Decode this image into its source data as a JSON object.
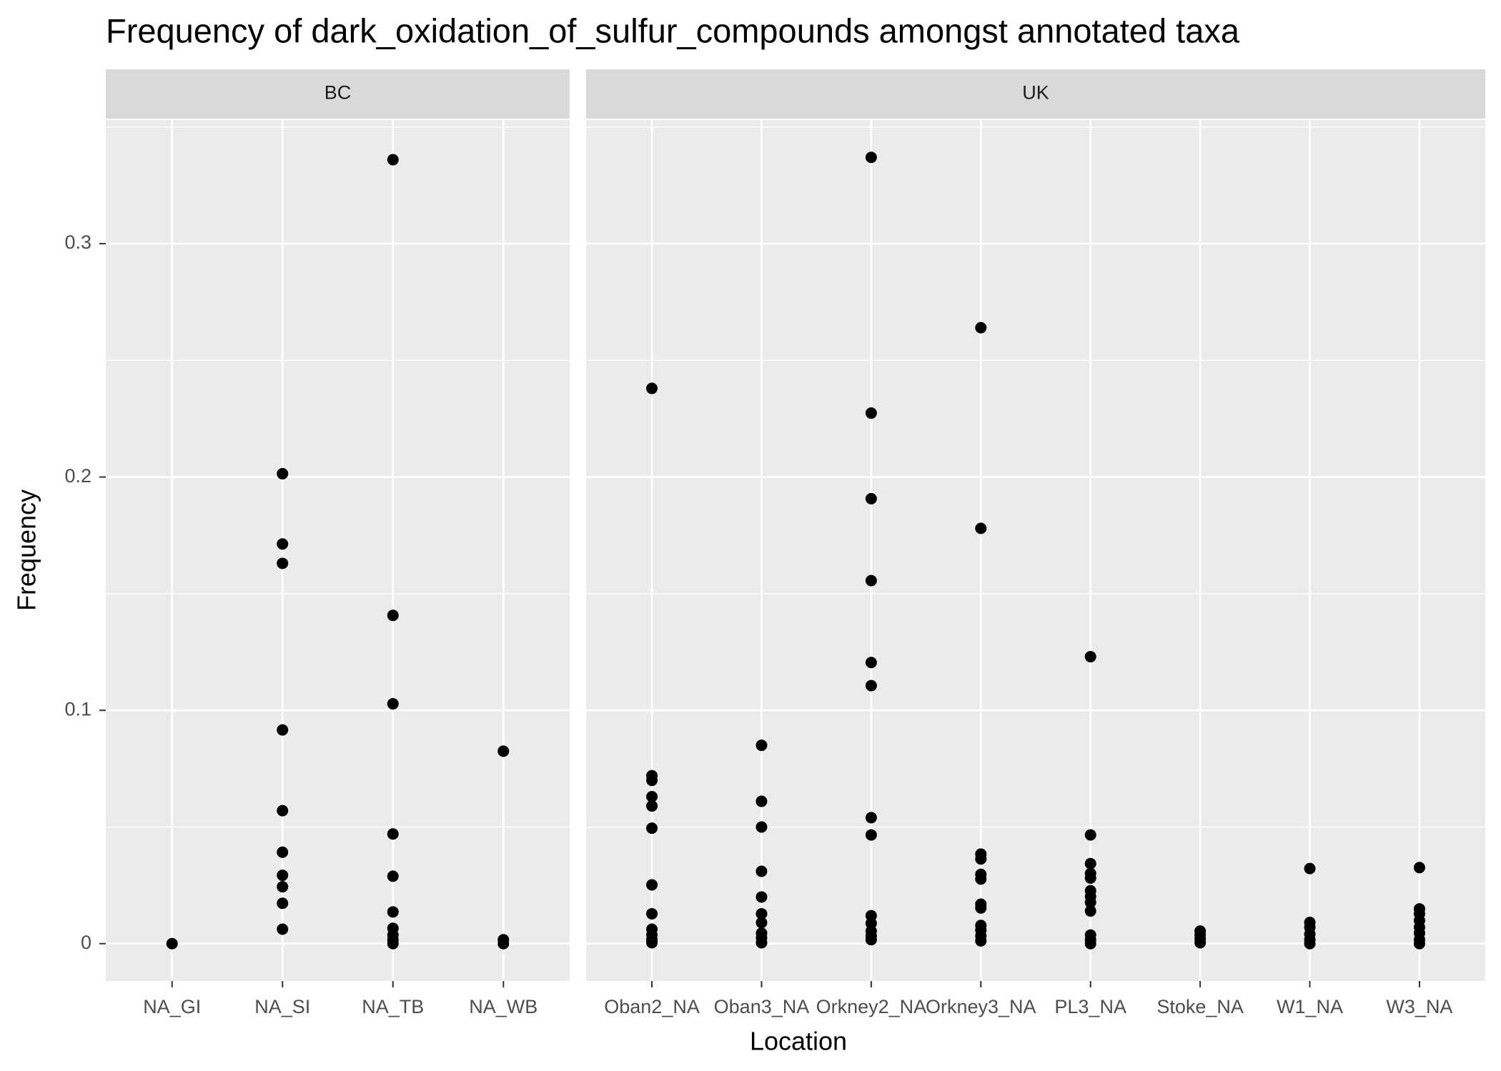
{
  "chart_data": {
    "type": "strip",
    "title": "Frequency of dark_oxidation_of_sulfur_compounds amongst annotated taxa",
    "x_label": "Location",
    "y_label": "Frequency",
    "ylim": [
      -0.016,
      0.353
    ],
    "yticks": [
      0.0,
      0.1,
      0.2,
      0.3
    ],
    "y_minor_grid": [
      0.05,
      0.15,
      0.25,
      0.35
    ],
    "grid": true,
    "color": "#000000",
    "panels": [
      {
        "name": "BC",
        "categories": [
          "NA_GI",
          "NA_SI",
          "NA_TB",
          "NA_WB"
        ],
        "values": [
          [
            0
          ],
          [
            0.2014,
            0.1713,
            0.163,
            0.0916,
            0.057,
            0.0392,
            0.0293,
            0.0244,
            0.0173,
            0.0062
          ],
          [
            0.336,
            0.1407,
            0.1028,
            0.047,
            0.0289,
            0.0136,
            0.0066,
            0.0037,
            0.0017,
            0
          ],
          [
            0.0825,
            0.0017,
            0
          ]
        ]
      },
      {
        "name": "UK",
        "categories": [
          "Oban2_NA",
          "Oban3_NA",
          "Orkney2_NA",
          "Orkney3_NA",
          "PL3_NA",
          "Stoke_NA",
          "W1_NA",
          "W3_NA"
        ],
        "values": [
          [
            0.238,
            0.072,
            0.07,
            0.063,
            0.059,
            0.0495,
            0.0252,
            0.0128,
            0.0062,
            0.0037,
            0.0017,
            0.0004
          ],
          [
            0.085,
            0.061,
            0.05,
            0.031,
            0.02,
            0.0128,
            0.009,
            0.0045,
            0.0025,
            0.0004
          ],
          [
            0.337,
            0.2274,
            0.1907,
            0.1556,
            0.1205,
            0.1106,
            0.054,
            0.0466,
            0.012,
            0.0087,
            0.0054,
            0.0033,
            0.0017
          ],
          [
            0.264,
            0.178,
            0.0384,
            0.0363,
            0.0297,
            0.0277,
            0.0169,
            0.0153,
            0.0078,
            0.0058,
            0.0033,
            0.0012
          ],
          [
            0.123,
            0.0466,
            0.0343,
            0.0301,
            0.0281,
            0.0227,
            0.0202,
            0.0177,
            0.014,
            0.0037,
            0.0017,
            0
          ],
          [
            0.0054,
            0.0037,
            0.0021,
            0.0004
          ],
          [
            0.0322,
            0.0091,
            0.007,
            0.0041,
            0.0017,
            0
          ],
          [
            0.0326,
            0.0149,
            0.0128,
            0.0099,
            0.007,
            0.0045,
            0.0017,
            0
          ]
        ]
      }
    ]
  }
}
